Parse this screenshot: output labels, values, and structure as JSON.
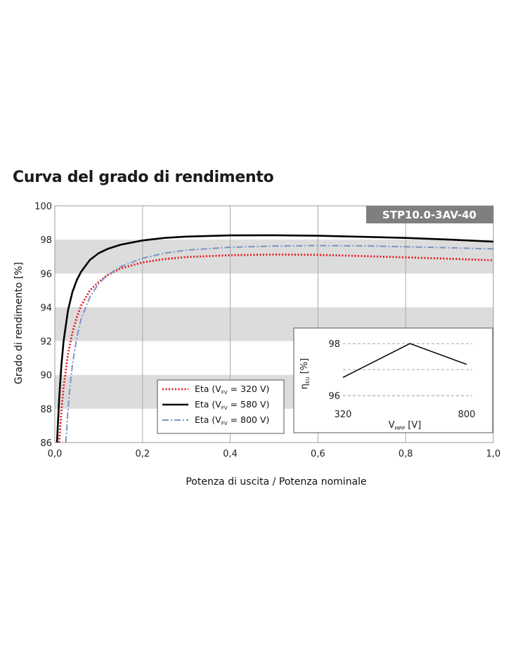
{
  "chart_data": {
    "type": "line",
    "title": "Curva del grado di rendimento",
    "model_badge": "STP10.0-3AV-40",
    "xlabel": "Potenza di uscita / Potenza nominale",
    "ylabel": "Grado di rendimento [%]",
    "xlim": [
      0.0,
      1.0
    ],
    "ylim": [
      86,
      100
    ],
    "x_ticks": [
      "0,0",
      "0,2",
      "0,4",
      "0,6",
      "0,8",
      "1,0"
    ],
    "y_ticks": [
      "86",
      "88",
      "90",
      "92",
      "94",
      "96",
      "98",
      "100"
    ],
    "grid": true,
    "shaded_bands": [
      [
        88,
        90
      ],
      [
        92,
        94
      ],
      [
        96,
        98
      ]
    ],
    "legend_position": "bottom-center",
    "series": [
      {
        "name": "Eta (VFV = 320 V)",
        "legend": {
          "prefix": "Eta (V",
          "sub": "FV",
          "suffix": " = 320 V)"
        },
        "color": "#e8151b",
        "style": "dotted",
        "x": [
          0.01,
          0.015,
          0.02,
          0.03,
          0.04,
          0.05,
          0.06,
          0.08,
          0.1,
          0.12,
          0.15,
          0.2,
          0.25,
          0.3,
          0.4,
          0.5,
          0.6,
          0.7,
          0.8,
          0.9,
          1.0
        ],
        "y": [
          86.0,
          87.9,
          89.3,
          91.2,
          92.5,
          93.4,
          94.1,
          95.0,
          95.5,
          95.9,
          96.3,
          96.65,
          96.85,
          96.97,
          97.08,
          97.12,
          97.1,
          97.03,
          96.95,
          96.87,
          96.78
        ]
      },
      {
        "name": "Eta (VFV = 580 V)",
        "legend": {
          "prefix": "Eta (V",
          "sub": "FV",
          "suffix": " = 580 V)"
        },
        "color": "#000000",
        "style": "solid",
        "x": [
          0.005,
          0.01,
          0.015,
          0.02,
          0.03,
          0.04,
          0.05,
          0.06,
          0.08,
          0.1,
          0.12,
          0.15,
          0.2,
          0.25,
          0.3,
          0.4,
          0.5,
          0.6,
          0.7,
          0.8,
          0.9,
          1.0
        ],
        "y": [
          86.0,
          88.6,
          90.6,
          92.0,
          93.8,
          94.9,
          95.6,
          96.1,
          96.8,
          97.2,
          97.45,
          97.7,
          97.95,
          98.1,
          98.18,
          98.25,
          98.26,
          98.23,
          98.17,
          98.1,
          98.0,
          97.88
        ]
      },
      {
        "name": "Eta (VFV = 800 V)",
        "legend": {
          "prefix": "Eta (V",
          "sub": "FV",
          "suffix": " = 800 V)"
        },
        "color": "#7b93c4",
        "style": "dashdot",
        "x": [
          0.025,
          0.03,
          0.035,
          0.04,
          0.05,
          0.06,
          0.08,
          0.1,
          0.12,
          0.15,
          0.2,
          0.25,
          0.3,
          0.4,
          0.5,
          0.6,
          0.7,
          0.8,
          0.9,
          1.0
        ],
        "y": [
          86.0,
          87.9,
          89.4,
          90.6,
          92.2,
          93.3,
          94.6,
          95.4,
          95.9,
          96.4,
          96.9,
          97.2,
          97.38,
          97.55,
          97.62,
          97.65,
          97.63,
          97.58,
          97.52,
          97.45
        ]
      }
    ],
    "inset": {
      "type": "line",
      "xlabel": {
        "prefix": "V",
        "sub": "MPP",
        "suffix": " [V]"
      },
      "ylabel": {
        "prefix": "η",
        "sub": "EU",
        "suffix": " [%]"
      },
      "x_ticks": [
        "320",
        "800"
      ],
      "y_ticks": [
        "96",
        "98"
      ],
      "xlim": [
        320,
        800
      ],
      "ylim": [
        95.6,
        98.3
      ],
      "grid": true,
      "x": [
        320,
        580,
        800
      ],
      "y": [
        96.7,
        98.0,
        97.2
      ]
    }
  }
}
